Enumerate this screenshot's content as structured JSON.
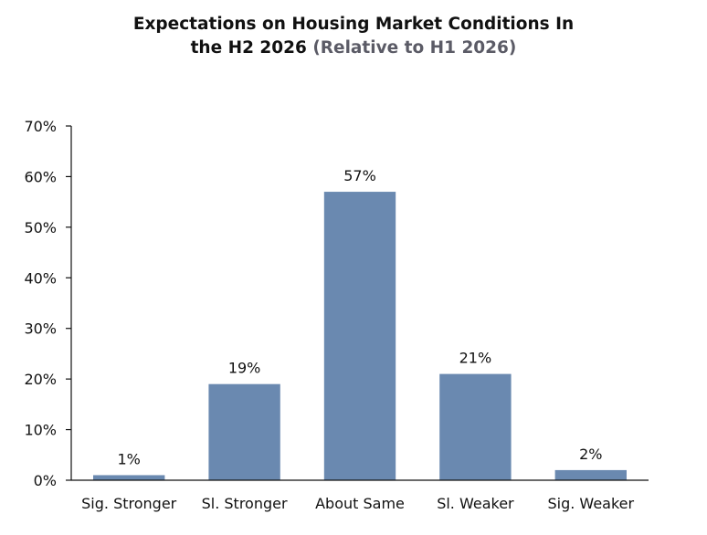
{
  "chart_data": {
    "type": "bar",
    "title_line1": "Expectations on Housing Market Conditions In",
    "title_line2": "the H2 2026",
    "subtitle": "(Relative to H1 2026)",
    "xlabel": "",
    "ylabel": "",
    "categories": [
      "Sig. Stronger",
      "Sl. Stronger",
      "About Same",
      "Sl. Weaker",
      "Sig. Weaker"
    ],
    "values": [
      1,
      19,
      57,
      21,
      2
    ],
    "value_labels": [
      "1%",
      "19%",
      "57%",
      "21%",
      "2%"
    ],
    "ylim": [
      0,
      70
    ],
    "yticks": [
      0,
      10,
      20,
      30,
      40,
      50,
      60,
      70
    ],
    "ytick_labels": [
      "0%",
      "10%",
      "20%",
      "30%",
      "40%",
      "50%",
      "60%",
      "70%"
    ],
    "bar_color": "#6a89b0",
    "grid": false,
    "legend": "none"
  }
}
